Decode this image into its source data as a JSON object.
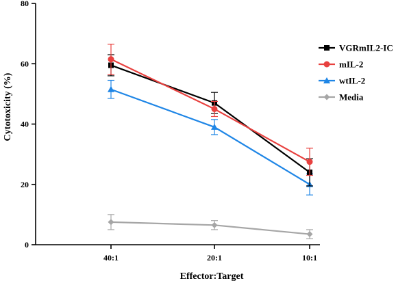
{
  "chart_data": {
    "type": "line",
    "xlabel": "Effector:Target",
    "ylabel": "Cytotoxicity (%)",
    "ylim": [
      0,
      80
    ],
    "yticks": [
      0,
      20,
      40,
      60,
      80
    ],
    "categories": [
      "40:1",
      "20:1",
      "10:1"
    ],
    "grid": false,
    "legend_position": "top-right",
    "series": [
      {
        "name": "VGRmIL2-IC",
        "values": [
          59.5,
          47.0,
          24.0
        ],
        "errors": [
          3.5,
          3.5,
          4.5
        ],
        "color": "#000000",
        "marker": "square"
      },
      {
        "name": "mIL-2",
        "values": [
          61.5,
          45.0,
          27.5
        ],
        "errors": [
          5.0,
          2.5,
          4.5
        ],
        "color": "#e8413f",
        "marker": "circle"
      },
      {
        "name": "wtIL-2",
        "values": [
          51.5,
          39.0,
          20.0
        ],
        "errors": [
          3.0,
          2.5,
          3.5
        ],
        "color": "#1f86e6",
        "marker": "triangle"
      },
      {
        "name": "Media",
        "values": [
          7.5,
          6.5,
          3.5
        ],
        "errors": [
          2.5,
          1.5,
          1.5
        ],
        "color": "#a6a6a6",
        "marker": "diamond"
      }
    ]
  }
}
